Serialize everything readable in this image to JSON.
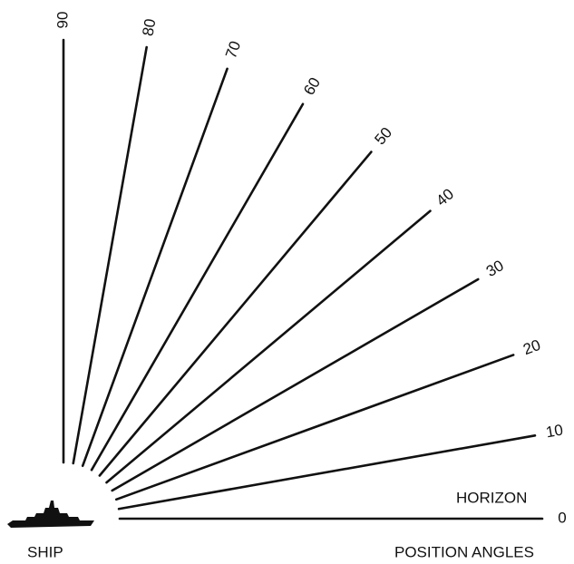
{
  "labels": {
    "ship": "SHIP",
    "horizon": "HORIZON",
    "caption": "POSITION ANGLES"
  },
  "angles": [
    0,
    10,
    20,
    30,
    40,
    50,
    60,
    70,
    80,
    90
  ]
}
